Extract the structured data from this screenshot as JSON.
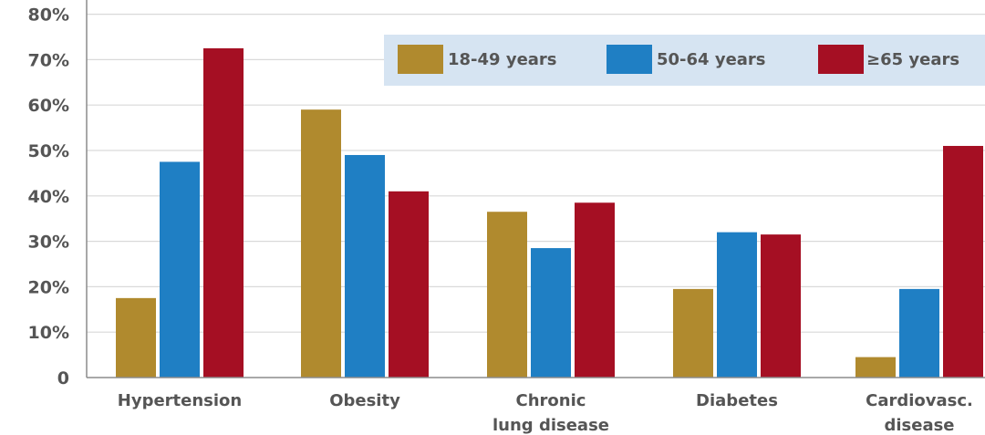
{
  "chart_data": {
    "type": "bar",
    "title": "",
    "xlabel": "",
    "ylabel": "",
    "ylim": [
      0,
      80
    ],
    "y_ticks": [
      "0",
      "10%",
      "20%",
      "30%",
      "40%",
      "50%",
      "60%",
      "70%",
      "80%"
    ],
    "y_tick_values": [
      0,
      10,
      20,
      30,
      40,
      50,
      60,
      70,
      80
    ],
    "categories": [
      [
        "Hypertension"
      ],
      [
        "Obesity"
      ],
      [
        "Chronic",
        "lung disease"
      ],
      [
        "Diabetes"
      ],
      [
        "Cardiovasc.",
        "disease"
      ]
    ],
    "series": [
      {
        "name": "18-49 years",
        "color": "#b08a2e",
        "values": [
          17.5,
          59,
          36.5,
          19.5,
          4.5
        ]
      },
      {
        "name": "50-64 years",
        "color": "#1f7fc4",
        "values": [
          47.5,
          49,
          28.5,
          32,
          19.5
        ]
      },
      {
        "name": "≥65 years",
        "color": "#a50f23",
        "values": [
          72.5,
          41,
          38.5,
          31.5,
          51
        ]
      }
    ],
    "grid": true,
    "legend_position": "top-right",
    "legend_background": "#d6e4f2",
    "grid_color": "#d9d9d9",
    "axis_color": "#8c8c8c"
  }
}
